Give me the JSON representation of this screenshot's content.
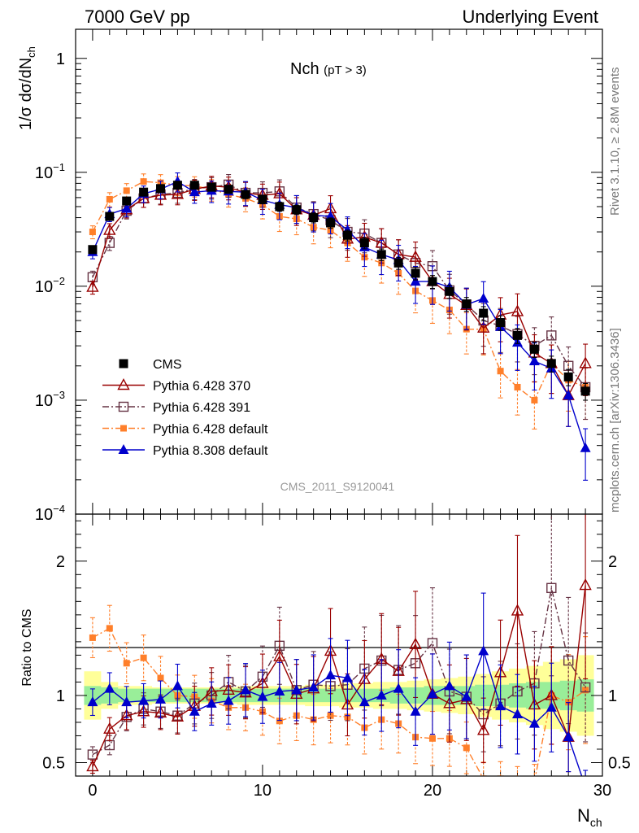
{
  "header": {
    "left": "7000 GeV pp",
    "right": "Underlying Event"
  },
  "side_labels": {
    "top": "Rivet 3.1.10, ≥ 2.8M events",
    "bottom": "mcplots.cern.ch [arXiv:1306.3436]"
  },
  "chart_data": [
    {
      "type": "scatter",
      "panel": "main",
      "title": "Nch",
      "title_sub": "(pT >  3)",
      "watermark": "CMS_2011_S9120041",
      "ylabel_main": "1/σ dσ/dN",
      "ylabel_sub": "ch",
      "xlabel_main": "N",
      "xlabel_sub": "ch",
      "y_scale": "log",
      "xlim": [
        -1,
        30
      ],
      "ylim": [
        0.0001,
        1.8
      ],
      "x_ticks": [
        "0",
        "10",
        "20",
        "30"
      ],
      "y_ticks": [
        {
          "base": "10",
          "exp": "−4"
        },
        {
          "base": "10",
          "exp": "−3"
        },
        {
          "base": "10",
          "exp": "−2"
        },
        {
          "base": "10",
          "exp": "−1"
        },
        {
          "base": "1",
          "exp": ""
        }
      ],
      "legend_position": "bottom-left",
      "series": [
        {
          "name": "CMS",
          "color": "#000000",
          "marker": "square",
          "line": "none",
          "x": [
            0,
            1,
            2,
            3,
            4,
            5,
            6,
            7,
            8,
            9,
            10,
            11,
            12,
            13,
            14,
            15,
            16,
            17,
            18,
            19,
            20,
            21,
            22,
            23,
            24,
            25,
            26,
            27,
            28,
            29
          ],
          "y": [
            0.021,
            0.041,
            0.056,
            0.067,
            0.072,
            0.077,
            0.077,
            0.074,
            0.071,
            0.064,
            0.058,
            0.05,
            0.047,
            0.04,
            0.036,
            0.028,
            0.024,
            0.019,
            0.016,
            0.013,
            0.011,
            0.009,
            0.007,
            0.0058,
            0.0048,
            0.0037,
            0.0028,
            0.0021,
            0.0016,
            0.0012
          ]
        },
        {
          "name": "Pythia 6.428 370",
          "color": "#990000",
          "marker": "triangle-open",
          "line": "solid",
          "x": [
            0,
            1,
            2,
            3,
            4,
            5,
            6,
            7,
            8,
            9,
            10,
            11,
            12,
            13,
            14,
            15,
            16,
            17,
            18,
            19,
            20,
            21,
            22,
            23,
            24,
            25,
            26,
            27,
            28,
            29
          ],
          "y": [
            0.0098,
            0.031,
            0.047,
            0.059,
            0.063,
            0.064,
            0.071,
            0.076,
            0.074,
            0.066,
            0.063,
            0.065,
            0.047,
            0.042,
            0.048,
            0.026,
            0.027,
            0.024,
            0.019,
            0.018,
            0.011,
            0.0085,
            0.0068,
            0.0043,
            0.0056,
            0.006,
            0.0026,
            0.0021,
            0.0011,
            0.0021
          ]
        },
        {
          "name": "Pythia 6.428 391",
          "color": "#663344",
          "marker": "square-open",
          "line": "dashdot",
          "x": [
            0,
            1,
            2,
            3,
            4,
            5,
            6,
            7,
            8,
            9,
            10,
            11,
            12,
            13,
            14,
            15,
            16,
            17,
            18,
            19,
            20,
            21,
            22,
            23,
            24,
            25,
            26,
            27,
            28,
            29
          ],
          "y": [
            0.012,
            0.024,
            0.046,
            0.059,
            0.064,
            0.066,
            0.072,
            0.074,
            0.078,
            0.066,
            0.066,
            0.068,
            0.049,
            0.043,
            0.038,
            0.03,
            0.029,
            0.024,
            0.019,
            0.016,
            0.015,
            0.0092,
            0.0069,
            0.005,
            0.0045,
            0.0038,
            0.003,
            0.0037,
            0.002,
            0.0013
          ]
        },
        {
          "name": "Pythia 6.428 default",
          "color": "#ff7f2a",
          "marker": "square-small",
          "line": "dashdot",
          "x": [
            0,
            1,
            2,
            3,
            4,
            5,
            6,
            7,
            8,
            9,
            10,
            11,
            12,
            13,
            14,
            15,
            16,
            17,
            18,
            19,
            20,
            21,
            22,
            23,
            24,
            25,
            26,
            27,
            28,
            29
          ],
          "y": [
            0.03,
            0.058,
            0.069,
            0.083,
            0.081,
            0.077,
            0.076,
            0.071,
            0.064,
            0.059,
            0.052,
            0.041,
            0.039,
            0.033,
            0.031,
            0.024,
            0.018,
            0.016,
            0.013,
            0.0091,
            0.0075,
            0.0062,
            0.0042,
            0.0042,
            0.0018,
            0.0013,
            0.001,
            0.0021,
            0.0015,
            0.0013
          ]
        },
        {
          "name": "Pythia 8.308 default",
          "color": "#0000cc",
          "marker": "triangle",
          "line": "solid",
          "x": [
            0,
            1,
            2,
            3,
            4,
            5,
            6,
            7,
            8,
            9,
            10,
            11,
            12,
            13,
            14,
            15,
            16,
            17,
            18,
            19,
            20,
            21,
            22,
            23,
            24,
            25,
            26,
            27,
            28,
            29
          ],
          "y": [
            0.02,
            0.043,
            0.048,
            0.065,
            0.071,
            0.083,
            0.067,
            0.069,
            0.068,
            0.067,
            0.057,
            0.052,
            0.049,
            0.042,
            0.041,
            0.031,
            0.022,
            0.019,
            0.017,
            0.011,
            0.011,
            0.0098,
            0.0069,
            0.0078,
            0.0044,
            0.0032,
            0.0022,
            0.0019,
            0.0011,
            0.00038
          ]
        }
      ]
    },
    {
      "type": "scatter",
      "panel": "ratio",
      "ylabel": "Ratio to CMS",
      "xlim": [
        -1,
        30
      ],
      "ylim": [
        0.4,
        2.35
      ],
      "y_ticks": [
        "0.5",
        "1",
        "2"
      ],
      "band_inner": {
        "color": "#99ee99",
        "x": [
          0,
          1,
          2,
          3,
          4,
          5,
          6,
          7,
          8,
          9,
          10,
          11,
          12,
          13,
          14,
          15,
          16,
          17,
          18,
          19,
          20,
          21,
          22,
          23,
          24,
          25,
          26,
          27,
          28,
          29
        ],
        "half_width": [
          0.07,
          0.06,
          0.05,
          0.05,
          0.05,
          0.05,
          0.05,
          0.05,
          0.05,
          0.05,
          0.05,
          0.05,
          0.05,
          0.05,
          0.05,
          0.05,
          0.05,
          0.05,
          0.06,
          0.06,
          0.07,
          0.07,
          0.07,
          0.08,
          0.08,
          0.09,
          0.1,
          0.1,
          0.11,
          0.12
        ]
      },
      "band_outer": {
        "color": "#ffff99",
        "x": [
          0,
          1,
          2,
          3,
          4,
          5,
          6,
          7,
          8,
          9,
          10,
          11,
          12,
          13,
          14,
          15,
          16,
          17,
          18,
          19,
          20,
          21,
          22,
          23,
          24,
          25,
          26,
          27,
          28,
          29
        ],
        "half_width": [
          0.18,
          0.1,
          0.07,
          0.07,
          0.06,
          0.06,
          0.06,
          0.06,
          0.06,
          0.07,
          0.07,
          0.07,
          0.07,
          0.08,
          0.08,
          0.09,
          0.09,
          0.1,
          0.1,
          0.11,
          0.12,
          0.13,
          0.14,
          0.16,
          0.18,
          0.2,
          0.22,
          0.25,
          0.27,
          0.3
        ]
      },
      "series": [
        {
          "name": "Pythia 6.428 370",
          "color": "#990000",
          "marker": "triangle-open",
          "line": "solid",
          "y": [
            0.47,
            0.75,
            0.85,
            0.88,
            0.87,
            0.84,
            0.92,
            1.03,
            1.04,
            1.02,
            1.09,
            1.29,
            1.01,
            1.05,
            1.33,
            0.93,
            1.12,
            1.27,
            1.18,
            1.38,
            1.01,
            0.94,
            0.97,
            0.74,
            1.17,
            1.63,
            0.93,
            1.0,
            0.69,
            1.82
          ]
        },
        {
          "name": "Pythia 6.428 391",
          "color": "#663344",
          "marker": "square-open",
          "line": "dashdot",
          "y": [
            0.56,
            0.63,
            0.84,
            0.9,
            0.88,
            0.85,
            0.94,
            1.0,
            1.1,
            1.03,
            1.14,
            1.37,
            1.04,
            1.08,
            1.07,
            1.08,
            1.2,
            1.26,
            1.19,
            1.24,
            1.39,
            1.03,
            0.99,
            0.86,
            0.94,
            1.03,
            1.09,
            1.8,
            1.26,
            1.06
          ]
        },
        {
          "name": "Pythia 6.428 default",
          "color": "#ff7f2a",
          "marker": "square-small",
          "line": "dashdot",
          "y": [
            1.43,
            1.5,
            1.24,
            1.28,
            1.13,
            1.0,
            0.99,
            0.96,
            0.91,
            0.91,
            0.88,
            0.81,
            0.85,
            0.82,
            0.85,
            0.84,
            0.76,
            0.82,
            0.79,
            0.69,
            0.68,
            0.68,
            0.61,
            0.38,
            0.38,
            0.35,
            0.36,
            1.0,
            0.95,
            1.04
          ]
        },
        {
          "name": "Pythia 8.308 default",
          "color": "#0000cc",
          "marker": "triangle",
          "line": "solid",
          "y": [
            0.95,
            1.05,
            0.95,
            0.96,
            0.97,
            1.07,
            0.88,
            0.94,
            0.96,
            1.04,
            0.99,
            1.03,
            1.04,
            1.06,
            1.15,
            1.13,
            0.95,
            1.0,
            1.05,
            0.88,
            1.01,
            1.07,
            0.99,
            1.33,
            0.92,
            0.86,
            0.79,
            0.91,
            0.69,
            0.32
          ]
        }
      ]
    }
  ]
}
